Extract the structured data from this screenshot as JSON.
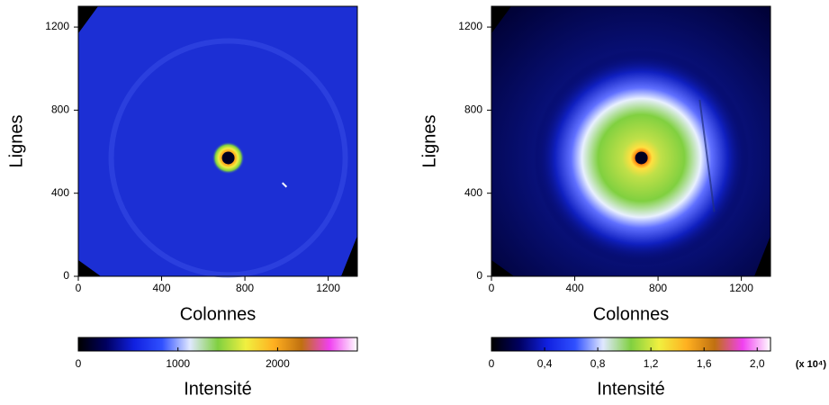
{
  "chart_data": [
    {
      "type": "image",
      "xlabel": "Colonnes",
      "ylabel": "Lignes",
      "xlim": [
        0,
        1340
      ],
      "ylim": [
        0,
        1300
      ],
      "xticks": [
        0,
        400,
        800,
        1200
      ],
      "yticks": [
        0,
        400,
        800,
        1200
      ],
      "colorbar_label": "Intensité",
      "colorbar_lim": [
        0,
        2800
      ],
      "colorbar_ticks": [
        0,
        1000,
        2000
      ],
      "colormap": [
        "#000000",
        "#000060",
        "#1020e0",
        "#3050ff",
        "#e0e8ff",
        "#80d040",
        "#f0f040",
        "#ffb020",
        "#c07010",
        "#f040f0",
        "#ffffff"
      ]
    },
    {
      "type": "image",
      "xlabel": "Colonnes",
      "ylabel": "Lignes",
      "xlim": [
        0,
        1340
      ],
      "ylim": [
        0,
        1300
      ],
      "xticks": [
        0,
        400,
        800,
        1200
      ],
      "yticks": [
        0,
        400,
        800,
        1200
      ],
      "colorbar_label": "Intensité",
      "colorbar_unit": "(x 10⁴)",
      "colorbar_lim": [
        0,
        2.1
      ],
      "colorbar_ticks": [
        0,
        {
          "value": 0.4,
          "label": "0,4"
        },
        {
          "value": 0.8,
          "label": "0,8"
        },
        {
          "value": 1.2,
          "label": "1,2"
        },
        {
          "value": 1.6,
          "label": "1,6"
        },
        {
          "value": 2.0,
          "label": "2,0"
        }
      ],
      "colormap": [
        "#000000",
        "#000060",
        "#1020e0",
        "#3050ff",
        "#e0e8ff",
        "#80d040",
        "#f0f040",
        "#ffb020",
        "#c07010",
        "#f040f0",
        "#ffffff"
      ]
    }
  ]
}
